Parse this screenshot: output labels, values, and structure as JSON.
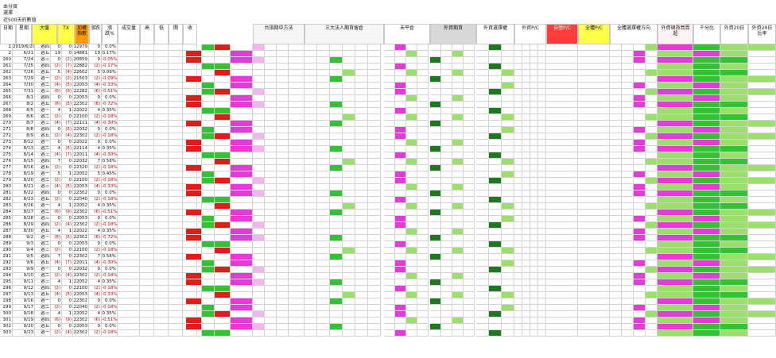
{
  "top_left": {
    "line1": "本分頁",
    "line2": "選擇"
  },
  "sheet_title": "近500天的數值",
  "header_row": {
    "col_date": "日期",
    "col_week": "星期",
    "col_major_index": "大盤",
    "col_tx": "TX",
    "col_orange_badge": "加權指數",
    "col_diff": "漲跌",
    "col_pct": "漲跌%",
    "col_vol": "成交量",
    "col_high": "高",
    "col_low": "低",
    "col_open": "開",
    "col_close": "收",
    "col_section1": "台指期中方法",
    "col_section2": "三大法人期貨留倉",
    "col_section3": "未平倉",
    "col_section4": "外資期貨",
    "col_section5": "外資選擇權",
    "col_section6": "外資P/C",
    "col_section7": "自營P/C",
    "col_section8": "全體P/C",
    "col_section9": "全體選擇權方向",
    "col_section10": "外資現貨買賣超",
    "col_section11": "千分比",
    "col_section12": "外資20日",
    "col_section13": "外資20日比率"
  },
  "colors": {
    "red": "#e21b1b",
    "green": "#33c233",
    "darkgreen": "#1f7a1f",
    "lime": "#9be06a",
    "magenta": "#e33ad8",
    "pink": "#f3b5ef",
    "yellow": "#ffff4a",
    "orange": "#ff9a00",
    "blue": "#2a57d0",
    "grey": "#d9d9d9"
  },
  "rows": [
    {
      "no": "1",
      "date": "2019/6/20",
      "week": "週四",
      "v1": "0",
      "v2": "0",
      "v3": "12979",
      "v4": "0",
      "v5": "0.0%"
    },
    {
      "no": "2",
      "date": "6/21",
      "week": "週五",
      "v1": "19",
      "v2": "0",
      "v3": "14881",
      "v4": "19",
      "v5": "0.17%"
    },
    {
      "no": "260",
      "date": "7/24",
      "week": "週三",
      "v1": "0",
      "v2": "(2)",
      "v3": "20859",
      "v4": "0",
      "v5": "-0.05%"
    },
    {
      "no": "261",
      "date": "7/25",
      "week": "週四",
      "v1": "(2)",
      "v2": "(7)",
      "v3": "22882",
      "v4": "(2)",
      "v5": "-0.17%"
    },
    {
      "no": "262",
      "date": "7/26",
      "week": "週五",
      "v1": "5",
      "v2": "(4)",
      "v3": "22602",
      "v4": "5",
      "v5": "0.09%"
    },
    {
      "no": "263",
      "date": "7/29",
      "week": "週一",
      "v1": "(2)",
      "v2": "(2)",
      "v3": "21503",
      "v4": "(2)",
      "v5": "-0.09%"
    },
    {
      "no": "264",
      "date": "7/30",
      "week": "週二",
      "v1": "(4)",
      "v2": "(5)",
      "v3": "22053",
      "v4": "(4)",
      "v5": "-0.33%"
    },
    {
      "no": "265",
      "date": "7/31",
      "week": "週三",
      "v1": "(6)",
      "v2": "(9)",
      "v3": "22282",
      "v4": "(6)",
      "v5": "-0.51%"
    },
    {
      "no": "266",
      "date": "8/1",
      "week": "週四",
      "v1": "0",
      "v2": "0",
      "v3": "22053",
      "v4": "0",
      "v5": "0.0%"
    },
    {
      "no": "267",
      "date": "8/2",
      "week": "週五",
      "v1": "(8)",
      "v2": "(5)",
      "v3": "22302",
      "v4": "(8)",
      "v5": "-0.72%"
    },
    {
      "no": "268",
      "date": "8/5",
      "week": "週一",
      "v1": "4",
      "v2": "1",
      "v3": "22022",
      "v4": "4",
      "v5": "0.35%"
    },
    {
      "no": "269",
      "date": "8/6",
      "week": "週二",
      "v1": "(2)",
      "v2": "0",
      "v3": "22100",
      "v4": "(2)",
      "v5": "-0.18%"
    },
    {
      "no": "270",
      "date": "8/7",
      "week": "週三",
      "v1": "(4)",
      "v2": "(7)",
      "v3": "22111",
      "v4": "(4)",
      "v5": "-0.30%"
    },
    {
      "no": "271",
      "date": "8/8",
      "week": "週四",
      "v1": "0",
      "v2": "(5)",
      "v3": "22032",
      "v4": "0",
      "v5": "0.0%"
    },
    {
      "no": "272",
      "date": "8/9",
      "week": "週五",
      "v1": "(2)",
      "v2": "(4)",
      "v3": "22302",
      "v4": "(2)",
      "v5": "-0.18%"
    },
    {
      "no": "273",
      "date": "8/12",
      "week": "週一",
      "v1": "0",
      "v2": "0",
      "v3": "22022",
      "v4": "0",
      "v5": "0.0%"
    },
    {
      "no": "274",
      "date": "8/13",
      "week": "週二",
      "v1": "4",
      "v2": "(5)",
      "v3": "22114",
      "v4": "4",
      "v5": "0.35%"
    },
    {
      "no": "275",
      "date": "8/14",
      "week": "週三",
      "v1": "(4)",
      "v2": "(7)",
      "v3": "22011",
      "v4": "(4)",
      "v5": "-0.30%"
    },
    {
      "no": "276",
      "date": "8/15",
      "week": "週四",
      "v1": "7",
      "v2": "0",
      "v3": "22032",
      "v4": "7",
      "v5": "0.58%"
    },
    {
      "no": "277",
      "date": "8/16",
      "week": "週五",
      "v1": "(2)",
      "v2": "0",
      "v3": "22320",
      "v4": "(2)",
      "v5": "-0.18%"
    },
    {
      "no": "278",
      "date": "8/19",
      "week": "週一",
      "v1": "5",
      "v2": "1",
      "v3": "22052",
      "v4": "5",
      "v5": "0.45%"
    },
    {
      "no": "279",
      "date": "8/20",
      "week": "週二",
      "v1": "(2)",
      "v2": "0",
      "v3": "22100",
      "v4": "(2)",
      "v5": "-0.18%"
    },
    {
      "no": "280",
      "date": "8/21",
      "week": "週三",
      "v1": "(4)",
      "v2": "(5)",
      "v3": "22053",
      "v4": "(4)",
      "v5": "-0.33%"
    },
    {
      "no": "281",
      "date": "8/22",
      "week": "週四",
      "v1": "0",
      "v2": "0",
      "v3": "22302",
      "v4": "0",
      "v5": "0.0%"
    },
    {
      "no": "282",
      "date": "8/23",
      "week": "週五",
      "v1": "(2)",
      "v2": "0",
      "v3": "22040",
      "v4": "(2)",
      "v5": "-0.18%"
    },
    {
      "no": "283",
      "date": "8/26",
      "week": "週一",
      "v1": "4",
      "v2": "1",
      "v3": "22052",
      "v4": "4",
      "v5": "0.35%"
    },
    {
      "no": "284",
      "date": "8/27",
      "week": "週二",
      "v1": "(6)",
      "v2": "(9)",
      "v3": "22302",
      "v4": "(6)",
      "v5": "-0.51%"
    },
    {
      "no": "285",
      "date": "8/28",
      "week": "週三",
      "v1": "0",
      "v2": "0",
      "v3": "22053",
      "v4": "0",
      "v5": "0.0%"
    },
    {
      "no": "286",
      "date": "8/29",
      "week": "週四",
      "v1": "(2)",
      "v2": "(4)",
      "v3": "22302",
      "v4": "(2)",
      "v5": "-0.18%"
    },
    {
      "no": "287",
      "date": "8/30",
      "week": "週五",
      "v1": "4",
      "v2": "1",
      "v3": "22022",
      "v4": "4",
      "v5": "0.35%"
    },
    {
      "no": "288",
      "date": "9/2",
      "week": "週一",
      "v1": "(8)",
      "v2": "(5)",
      "v3": "22302",
      "v4": "(8)",
      "v5": "-0.72%"
    },
    {
      "no": "289",
      "date": "9/3",
      "week": "週二",
      "v1": "0",
      "v2": "0",
      "v3": "22053",
      "v4": "0",
      "v5": "0.0%"
    },
    {
      "no": "290",
      "date": "9/4",
      "week": "週三",
      "v1": "(2)",
      "v2": "0",
      "v3": "22100",
      "v4": "(2)",
      "v5": "-0.18%"
    },
    {
      "no": "291",
      "date": "9/5",
      "week": "週四",
      "v1": "7",
      "v2": "0",
      "v3": "22302",
      "v4": "7",
      "v5": "0.58%"
    },
    {
      "no": "292",
      "date": "9/6",
      "week": "週五",
      "v1": "(4)",
      "v2": "(7)",
      "v3": "22011",
      "v4": "(4)",
      "v5": "-0.30%"
    },
    {
      "no": "293",
      "date": "9/9",
      "week": "週一",
      "v1": "0",
      "v2": "0",
      "v3": "22032",
      "v4": "0",
      "v5": "0.0%"
    },
    {
      "no": "294",
      "date": "9/10",
      "week": "週二",
      "v1": "(2)",
      "v2": "(4)",
      "v3": "22302",
      "v4": "(2)",
      "v5": "-0.18%"
    },
    {
      "no": "295",
      "date": "9/11",
      "week": "週三",
      "v1": "4",
      "v2": "1",
      "v3": "22052",
      "v4": "4",
      "v5": "0.35%"
    },
    {
      "no": "296",
      "date": "9/12",
      "week": "週四",
      "v1": "(2)",
      "v2": "0",
      "v3": "22100",
      "v4": "(2)",
      "v5": "-0.18%"
    },
    {
      "no": "297",
      "date": "9/13",
      "week": "週五",
      "v1": "(4)",
      "v2": "(5)",
      "v3": "22053",
      "v4": "(4)",
      "v5": "-0.33%"
    },
    {
      "no": "298",
      "date": "9/16",
      "week": "週一",
      "v1": "0",
      "v2": "0",
      "v3": "22302",
      "v4": "0",
      "v5": "0.0%"
    },
    {
      "no": "299",
      "date": "9/17",
      "week": "週二",
      "v1": "(2)",
      "v2": "0",
      "v3": "22040",
      "v4": "(2)",
      "v5": "-0.18%"
    },
    {
      "no": "300",
      "date": "9/18",
      "week": "週三",
      "v1": "4",
      "v2": "1",
      "v3": "22052",
      "v4": "4",
      "v5": "0.35%"
    },
    {
      "no": "301",
      "date": "9/19",
      "week": "週四",
      "v1": "(6)",
      "v2": "(9)",
      "v3": "22302",
      "v4": "(6)",
      "v5": "-0.51%"
    },
    {
      "no": "302",
      "date": "9/20",
      "week": "週五",
      "v1": "0",
      "v2": "0",
      "v3": "22053",
      "v4": "0",
      "v5": "0.0%"
    },
    {
      "no": "303",
      "date": "9/23",
      "week": "週一",
      "v1": "(2)",
      "v2": "(4)",
      "v3": "22302",
      "v4": "(2)",
      "v5": "-0.18%"
    }
  ]
}
